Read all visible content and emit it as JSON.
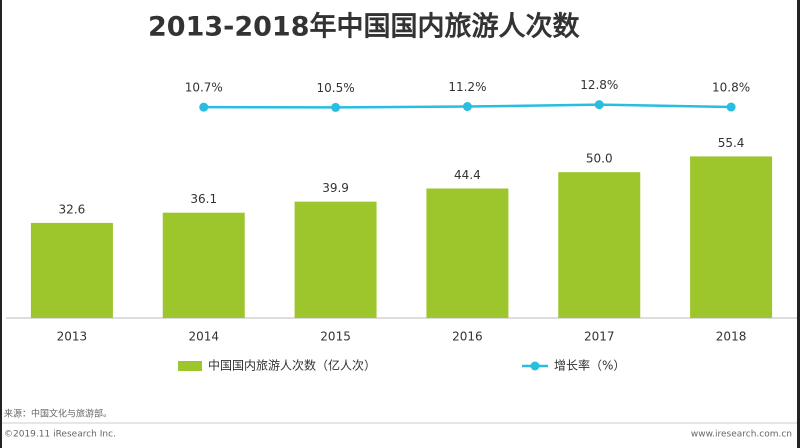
{
  "chart_data": {
    "type": "bar",
    "title": "2013-2018年中国国内旅游人次数",
    "categories": [
      "2013",
      "2014",
      "2015",
      "2016",
      "2017",
      "2018"
    ],
    "ylim": [
      0,
      60
    ],
    "y2lim": [
      -150,
      50
    ],
    "series": [
      {
        "name": "中国国内旅游人次数（亿人次）",
        "type": "bar",
        "color": "#9dc62d",
        "values": [
          32.6,
          36.1,
          39.9,
          44.4,
          50.0,
          55.4
        ],
        "value_labels": [
          "32.6",
          "36.1",
          "39.9",
          "44.4",
          "50.0",
          "55.4"
        ]
      },
      {
        "name": "增长率（%）",
        "type": "line",
        "axis": "y2",
        "color": "#29bde0",
        "values": [
          null,
          10.7,
          10.5,
          11.2,
          12.8,
          10.8
        ],
        "value_labels": [
          null,
          "10.7%",
          "10.5%",
          "11.2%",
          "12.8%",
          "10.8%"
        ]
      }
    ],
    "source": "来源：中国文化与旅游部。",
    "copyright": "©2019.11 iResearch Inc.",
    "website": "www.iresearch.com.cn"
  }
}
